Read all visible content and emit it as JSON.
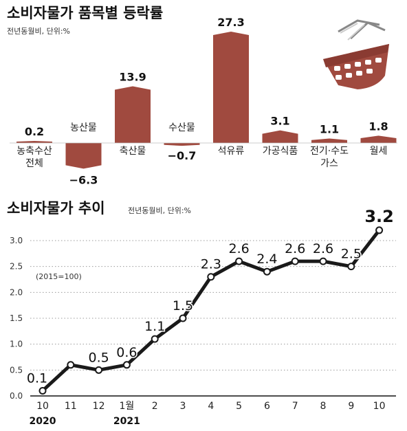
{
  "chart_data": [
    {
      "type": "bar",
      "title": "소비자물가 품목별 등락률",
      "subtitle": "전년동월비, 단위:%",
      "categories": [
        "농축수산 전체",
        "농산물",
        "축산물",
        "수산물",
        "석유류",
        "가공식품",
        "전기·수도 가스",
        "월세"
      ],
      "category_lines": [
        [
          "농축수산",
          "전체"
        ],
        [
          "농산물"
        ],
        [
          "축산물"
        ],
        [
          "수산물"
        ],
        [
          "석유류"
        ],
        [
          "가공식품"
        ],
        [
          "전기·수도",
          "가스"
        ],
        [
          "월세"
        ]
      ],
      "values": [
        0.2,
        -6.3,
        13.9,
        -0.7,
        27.3,
        3.1,
        1.1,
        1.8
      ],
      "value_labels": [
        "0.2",
        "−6.3",
        "13.9",
        "−0.7",
        "27.3",
        "3.1",
        "1.1",
        "1.8"
      ],
      "bar_color": "#a04a3f",
      "icon": "shopping-basket-icon"
    },
    {
      "type": "line",
      "title": "소비자물가 추이",
      "subtitle": "전년동월비, 단위:%",
      "note": "(2015=100)",
      "x_ticks": [
        "10",
        "11",
        "12",
        "1월",
        "2",
        "3",
        "4",
        "5",
        "6",
        "7",
        "8",
        "9",
        "10"
      ],
      "year_labels": [
        {
          "label": "2020",
          "index": 0
        },
        {
          "label": "2021",
          "index": 3
        }
      ],
      "values": [
        0.1,
        0.6,
        0.5,
        0.6,
        1.1,
        1.5,
        2.3,
        2.6,
        2.4,
        2.6,
        2.6,
        2.5,
        3.2
      ],
      "point_labels": [
        "0.1",
        "",
        "0.5",
        "0.6",
        "1.1",
        "1.5",
        "2.3",
        "2.6",
        "2.4",
        "2.6",
        "2.6",
        "2.5",
        "3.2"
      ],
      "y_ticks": [
        "0.0",
        "0.5",
        "1.0",
        "1.5",
        "2.0",
        "2.5",
        "3.0"
      ],
      "ylim": [
        0,
        3.0
      ],
      "grid": true,
      "line_color": "#1a1a1a"
    }
  ]
}
